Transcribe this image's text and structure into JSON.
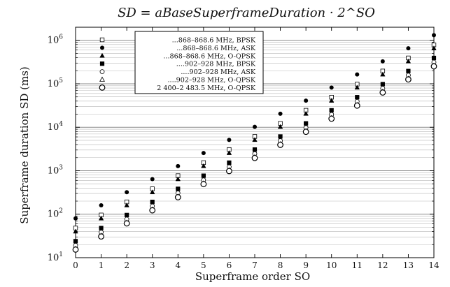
{
  "chart_data": {
    "type": "scatter",
    "title": "SD = aBaseSuperframeDuration · 2^SO",
    "xlabel": "Superframe order SO",
    "ylabel": "Superframe duration SD (ms)",
    "x": [
      0,
      1,
      2,
      3,
      4,
      5,
      6,
      7,
      8,
      9,
      10,
      11,
      12,
      13,
      14
    ],
    "x_ticks": [
      0,
      1,
      2,
      3,
      4,
      5,
      6,
      7,
      8,
      9,
      10,
      11,
      12,
      13,
      14
    ],
    "y_scale": "log",
    "ylim": [
      10,
      2000000
    ],
    "xlim": [
      0,
      14
    ],
    "y_tick_values": [
      10,
      100,
      1000,
      10000,
      100000,
      1000000
    ],
    "y_tick_labels": [
      {
        "base": "10",
        "exp": "1"
      },
      {
        "base": "10",
        "exp": "2"
      },
      {
        "base": "10",
        "exp": "3"
      },
      {
        "base": "10",
        "exp": "4"
      },
      {
        "base": "10",
        "exp": "5"
      },
      {
        "base": "10",
        "exp": "6"
      }
    ],
    "grid": "horizontal major and minor",
    "legend_position": "top-left",
    "series": [
      {
        "name": "...868–868.6 MHz, BPSK",
        "marker": "open-square",
        "values": [
          48,
          96,
          192,
          384,
          768,
          1536,
          3072,
          6144,
          12288,
          24576,
          49152,
          98304,
          196608,
          393216,
          786432
        ]
      },
      {
        "name": "...868–868.6 MHz, ASK",
        "marker": "filled-circle",
        "values": [
          80,
          160,
          320,
          640,
          1280,
          2560,
          5120,
          10240,
          20480,
          40960,
          81920,
          163840,
          327680,
          655360,
          1310720
        ]
      },
      {
        "name": "...868–868.6 MHz, O-QPSK",
        "marker": "filled-triangle",
        "values": [
          40,
          80,
          160,
          320,
          640,
          1280,
          2560,
          5120,
          10240,
          20480,
          40960,
          81920,
          163840,
          327680,
          655360
        ]
      },
      {
        "name": "....902–928 MHz, BPSK",
        "marker": "filled-square",
        "values": [
          24,
          48,
          96,
          192,
          384,
          768,
          1536,
          3072,
          6144,
          12288,
          24576,
          49152,
          98304,
          196608,
          393216
        ]
      },
      {
        "name": "....902–928 MHz, ASK",
        "marker": "open-circle",
        "values": [
          19.2,
          38.4,
          76.8,
          153.6,
          307.2,
          614.4,
          1228.8,
          2457.6,
          4915.2,
          9830.4,
          19660.8,
          39321.6,
          78643.2,
          157286.4,
          314572.8
        ]
      },
      {
        "name": "....902–928 MHz, O-QPSK",
        "marker": "open-triangle",
        "values": [
          16,
          32,
          64,
          128,
          256,
          512,
          1024,
          2048,
          4096,
          8192,
          16384,
          32768,
          65536,
          131072,
          262144
        ]
      },
      {
        "name": "2 400–2 483.5 MHz, O-QPSK",
        "marker": "big-open-circle",
        "values": [
          15.36,
          30.72,
          61.44,
          122.88,
          245.76,
          491.52,
          983.04,
          1966.08,
          3932.16,
          7864.32,
          15728.64,
          31457.28,
          62914.56,
          125829.12,
          251658.24
        ]
      }
    ]
  }
}
